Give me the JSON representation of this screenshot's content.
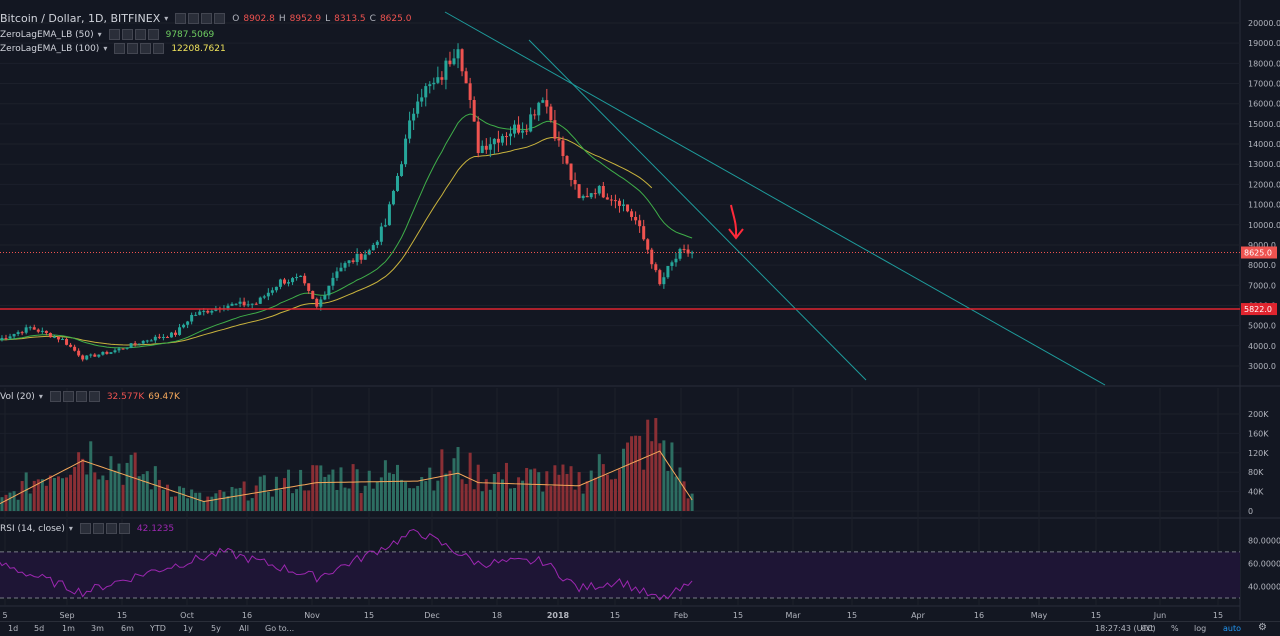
{
  "header": {
    "symbol": "Bitcoin / Dollar, 1D, BITFINEX",
    "ohlc": {
      "o_label": "O",
      "o": "8902.8",
      "h_label": "H",
      "h": "8952.9",
      "l_label": "L",
      "l": "8313.5",
      "c_label": "C",
      "c": "8625.0"
    }
  },
  "indicators": [
    {
      "name": "ZeroLagEMA_LB (50)",
      "value": "9787.5069",
      "color": "#6fce61"
    },
    {
      "name": "ZeroLagEMA_LB (100)",
      "value": "12208.7621",
      "color": "#f2e55c"
    }
  ],
  "volume_pane": {
    "name": "Vol (20)",
    "value1": "32.577K",
    "value2": "69.47K"
  },
  "rsi_pane": {
    "name": "RSI (14, close)",
    "value": "42.1235"
  },
  "price_axis": [
    "20000.0",
    "19000.0",
    "18000.0",
    "17000.0",
    "16000.0",
    "15000.0",
    "14000.0",
    "13000.0",
    "12000.0",
    "11000.0",
    "10000.0",
    "9000.0",
    "8000.0",
    "7000.0",
    "6000.0",
    "5000.0",
    "4000.0",
    "3000.0"
  ],
  "price_badges": {
    "last": "8625.0",
    "support": "5822.0"
  },
  "volume_axis": [
    "200K",
    "160K",
    "120K",
    "80K",
    "40K",
    "0"
  ],
  "rsi_axis": [
    "80.0000",
    "60.0000",
    "40.0000"
  ],
  "time_axis": [
    "5",
    "Sep",
    "15",
    "Oct",
    "16",
    "Nov",
    "15",
    "Dec",
    "18",
    "2018",
    "15",
    "Feb",
    "15",
    "Mar",
    "15",
    "Apr",
    "16",
    "May",
    "15",
    "Jun",
    "15"
  ],
  "bottom_toolbar": {
    "ranges": [
      "1d",
      "5d",
      "1m",
      "3m",
      "6m",
      "YTD",
      "1y",
      "5y",
      "All"
    ],
    "goto": "Go to...",
    "clock": "18:27:43 (UTC)",
    "options": [
      "ext",
      "%",
      "log",
      "auto"
    ]
  },
  "colors": {
    "up": "#26a69a",
    "down": "#ef5350",
    "ema50": "#3fae49",
    "ema100": "#c9b33d",
    "trend": "#1e9c9c",
    "support": "#e0252f",
    "rsi": "#9c27b0"
  },
  "chart_data": {
    "type": "candlestick",
    "title": "Bitcoin / Dollar, 1D, BITFINEX",
    "ylim": [
      2300,
      20400
    ],
    "annotations": [
      "horizontal support line at 5822.0",
      "horizontal line at last price 8625.0",
      "two descending trendlines",
      "red hand-drawn arrow pointing at latest candle"
    ],
    "price_anchors": [
      [
        "2017-08-25",
        4300
      ],
      [
        "2017-09-02",
        4900
      ],
      [
        "2017-09-10",
        4300
      ],
      [
        "2017-09-15",
        3400
      ],
      [
        "2017-09-22",
        3700
      ],
      [
        "2017-10-01",
        4300
      ],
      [
        "2017-10-08",
        4600
      ],
      [
        "2017-10-12",
        5500
      ],
      [
        "2017-10-20",
        6000
      ],
      [
        "2017-10-28",
        6100
      ],
      [
        "2017-11-03",
        7200
      ],
      [
        "2017-11-08",
        7300
      ],
      [
        "2017-11-12",
        5900
      ],
      [
        "2017-11-17",
        7800
      ],
      [
        "2017-11-25",
        8700
      ],
      [
        "2017-11-29",
        10000
      ],
      [
        "2017-12-07",
        16500
      ],
      [
        "2017-12-12",
        17000
      ],
      [
        "2017-12-17",
        19100
      ],
      [
        "2017-12-22",
        13800
      ],
      [
        "2017-12-28",
        14500
      ],
      [
        "2018-01-03",
        15000
      ],
      [
        "2018-01-07",
        16500
      ],
      [
        "2018-01-11",
        14000
      ],
      [
        "2018-01-16",
        11200
      ],
      [
        "2018-01-20",
        11800
      ],
      [
        "2018-01-26",
        11200
      ],
      [
        "2018-01-30",
        10200
      ],
      [
        "2018-02-02",
        8800
      ],
      [
        "2018-02-05",
        7000
      ],
      [
        "2018-02-07",
        7800
      ],
      [
        "2018-02-10",
        8600
      ],
      [
        "2018-02-13",
        8625
      ]
    ],
    "volume_anchors": [
      [
        "2017-08-25",
        20
      ],
      [
        "2017-09-15",
        160
      ],
      [
        "2017-10-15",
        30
      ],
      [
        "2017-11-12",
        90
      ],
      [
        "2017-12-07",
        95
      ],
      [
        "2017-12-17",
        120
      ],
      [
        "2017-12-22",
        90
      ],
      [
        "2018-01-16",
        80
      ],
      [
        "2018-02-05",
        190
      ],
      [
        "2018-02-13",
        35
      ]
    ],
    "rsi_anchors": [
      [
        "2017-08-25",
        60
      ],
      [
        "2017-09-15",
        35
      ],
      [
        "2017-10-01",
        52
      ],
      [
        "2017-10-20",
        70
      ],
      [
        "2017-11-12",
        48
      ],
      [
        "2017-11-25",
        68
      ],
      [
        "2017-12-07",
        88
      ],
      [
        "2017-12-22",
        60
      ],
      [
        "2018-01-07",
        62
      ],
      [
        "2018-01-16",
        38
      ],
      [
        "2018-01-26",
        45
      ],
      [
        "2018-02-05",
        28
      ],
      [
        "2018-02-13",
        42
      ]
    ]
  }
}
